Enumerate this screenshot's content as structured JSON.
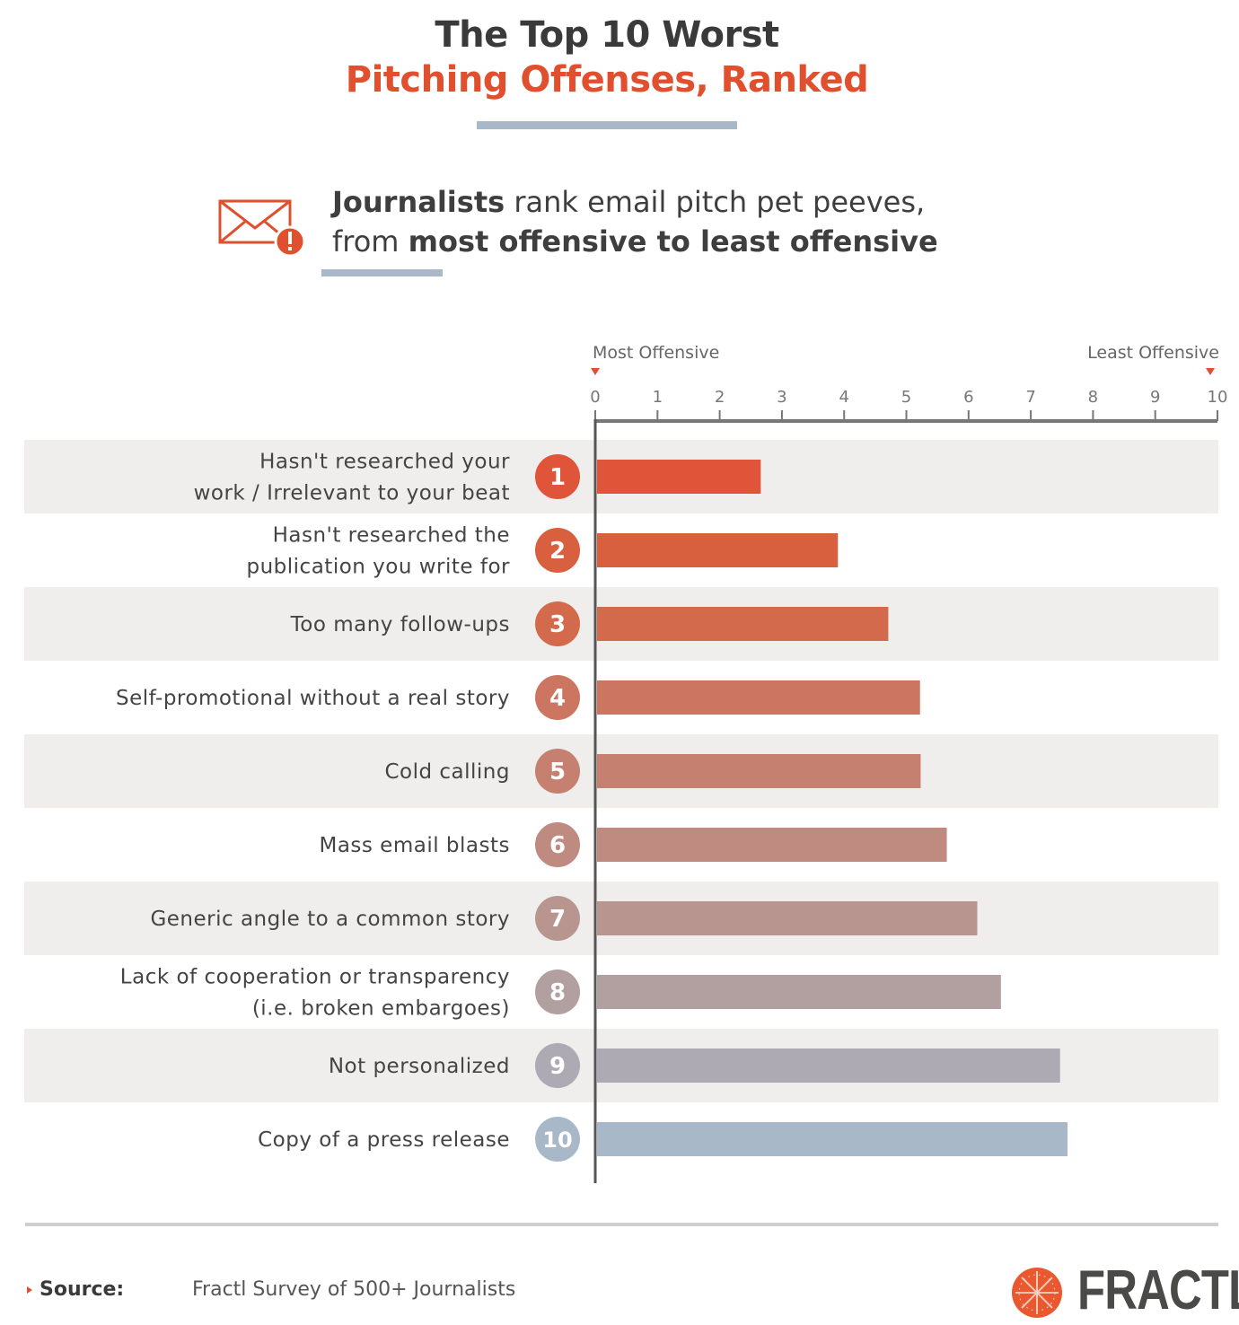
{
  "title": {
    "line1": "The Top 10 Worst",
    "line2": "Pitching Offenses, Ranked"
  },
  "subtitle": {
    "bold1": "Journalists",
    "text1": " rank email pitch pet peeves,",
    "text2": "from ",
    "bold2": "most offensive to least offensive"
  },
  "chart_data": {
    "type": "bar",
    "orientation": "horizontal",
    "axis_label_left": "Most Offensive",
    "axis_label_right": "Least Offensive",
    "xlim": [
      0,
      10
    ],
    "ticks": [
      "0",
      "1",
      "2",
      "3",
      "4",
      "5",
      "6",
      "7",
      "8",
      "9",
      "10"
    ],
    "categories": [
      [
        "Hasn't researched your",
        "work / Irrelevant to your beat"
      ],
      [
        "Hasn't researched the",
        "publication you write for"
      ],
      [
        "Too many follow-ups"
      ],
      [
        "Self-promotional without a real story"
      ],
      [
        "Cold calling"
      ],
      [
        "Mass email blasts"
      ],
      [
        "Generic angle to a common story"
      ],
      [
        "Lack of cooperation or transparency",
        "(i.e. broken embargoes)"
      ],
      [
        "Not personalized"
      ],
      [
        "Copy of a press release"
      ]
    ],
    "ranks": [
      "1",
      "2",
      "3",
      "4",
      "5",
      "6",
      "7",
      "8",
      "9",
      "10"
    ],
    "values": [
      2.66,
      3.9,
      4.71,
      5.22,
      5.23,
      5.65,
      6.14,
      6.52,
      7.47,
      7.59
    ],
    "colors": [
      "#e0553a",
      "#d9603f",
      "#d36a4c",
      "#cc7560",
      "#c58070",
      "#bf8a80",
      "#b8958f",
      "#b29f9f",
      "#adaab3",
      "#a9b8c8"
    ]
  },
  "footer": {
    "source_label": "Source:",
    "source_text": "Fractl Survey of 500+ Journalists",
    "logo": "FRACTL"
  },
  "colors": {
    "accent": "#e0502e",
    "row_alt": "#efeeed",
    "accent_line": "#a9b8c8"
  }
}
